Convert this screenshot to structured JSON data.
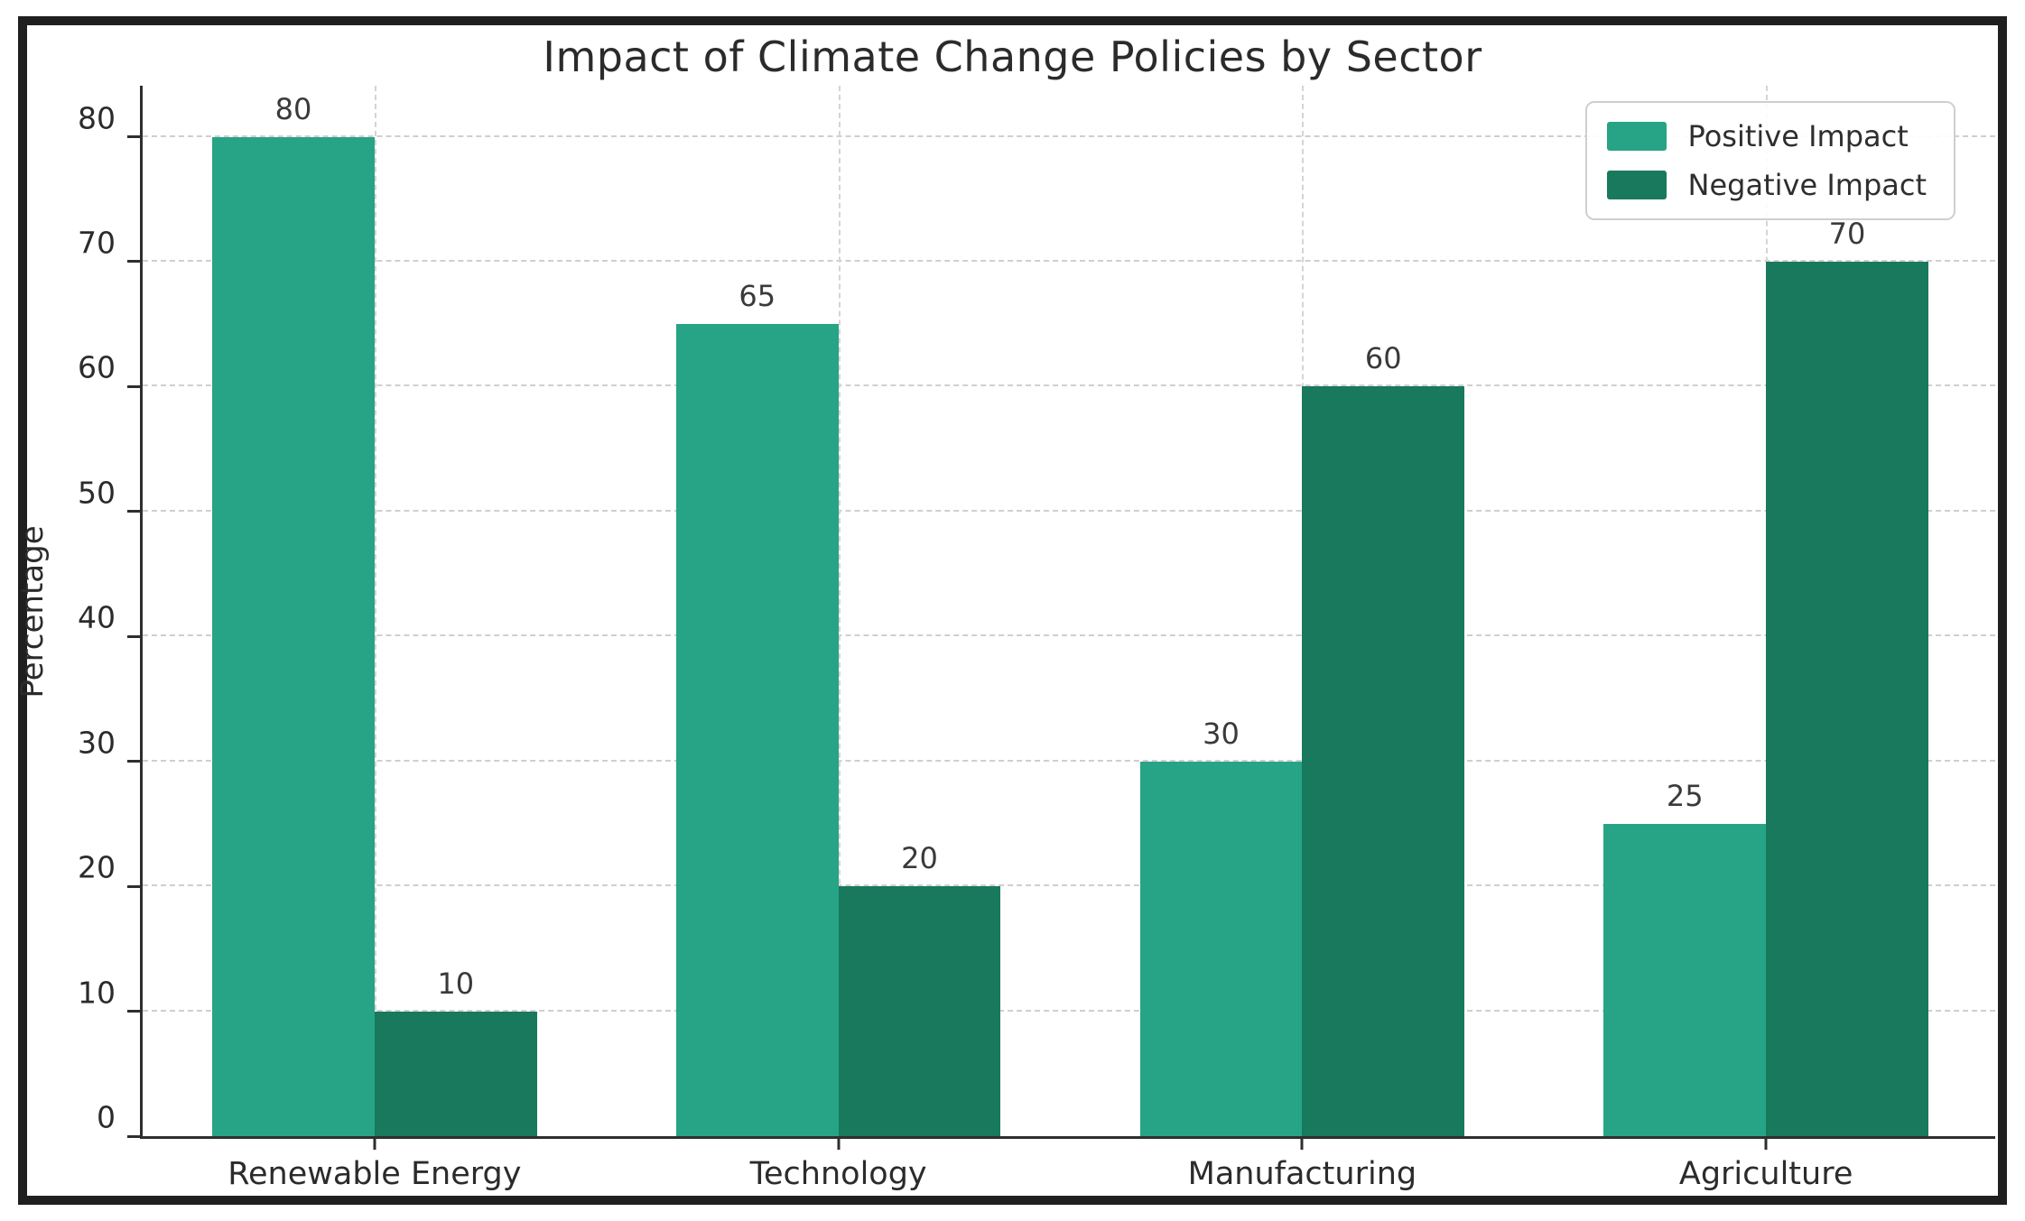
{
  "chart_data": {
    "type": "bar",
    "title": "Impact of Climate Change Policies by Sector",
    "xlabel": "",
    "ylabel": "Percentage",
    "categories": [
      "Renewable Energy",
      "Technology",
      "Manufacturing",
      "Agriculture"
    ],
    "series": [
      {
        "name": "Positive Impact",
        "color": "#26a485",
        "values": [
          80,
          65,
          30,
          25
        ]
      },
      {
        "name": "Negative Impact",
        "color": "#18795d",
        "values": [
          10,
          20,
          60,
          70
        ]
      }
    ],
    "yticks": [
      0,
      10,
      20,
      30,
      40,
      50,
      60,
      70,
      80
    ],
    "ylim": [
      0,
      84.3
    ],
    "grid": true,
    "grid_style": "dashed",
    "legend_position": "upper right",
    "bar_value_labels": true
  },
  "style": {
    "frame_color": "#1f1f1f",
    "grid_color": "#cfcfcf",
    "axis_color": "#2e2e2e",
    "text_color": "#2b2b2b",
    "background": "#ffffff"
  }
}
